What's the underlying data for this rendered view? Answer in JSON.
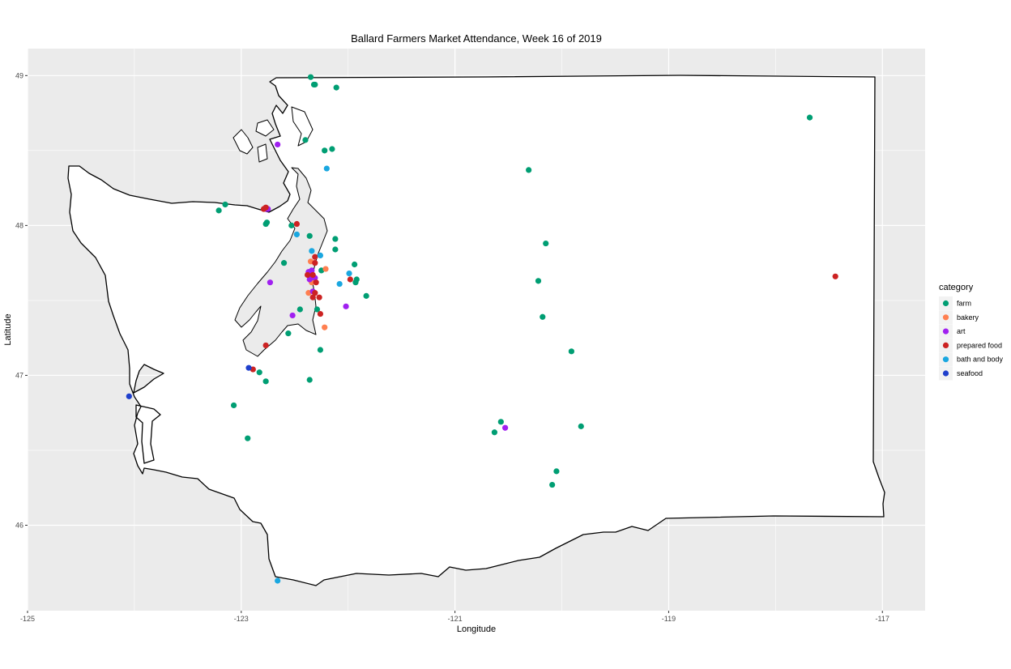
{
  "chart_data": {
    "type": "scatter",
    "title": "Ballard Farmers Market Attendance, Week 16 of 2019",
    "xlabel": "Longitude",
    "ylabel": "Latitude",
    "xlim": [
      -125.0,
      -116.6
    ],
    "ylim": [
      45.43,
      49.18
    ],
    "x_ticks": [
      -125,
      -123,
      -121,
      -119,
      -117
    ],
    "y_ticks": [
      46,
      47,
      48,
      49
    ],
    "grid": true,
    "legend": {
      "title": "category",
      "position": "right",
      "entries": [
        {
          "name": "farm",
          "color": "#009E73"
        },
        {
          "name": "bakery",
          "color": "#FF7F50"
        },
        {
          "name": "art",
          "color": "#A020F0"
        },
        {
          "name": "prepared food",
          "color": "#CC2222"
        },
        {
          "name": "bath and body",
          "color": "#1AA7E0"
        },
        {
          "name": "seafood",
          "color": "#1F3FCC"
        }
      ]
    },
    "series": [
      {
        "name": "farm",
        "points": [
          [
            -122.35,
            48.99
          ],
          [
            -122.31,
            48.94
          ],
          [
            -122.32,
            48.94
          ],
          [
            -122.11,
            48.92
          ],
          [
            -122.4,
            48.57
          ],
          [
            -122.22,
            48.5
          ],
          [
            -122.15,
            48.51
          ],
          [
            -123.15,
            48.14
          ],
          [
            -123.21,
            48.1
          ],
          [
            -122.77,
            48.01
          ],
          [
            -122.76,
            48.02
          ],
          [
            -122.53,
            48.0
          ],
          [
            -122.36,
            47.93
          ],
          [
            -122.12,
            47.91
          ],
          [
            -122.12,
            47.84
          ],
          [
            -122.6,
            47.75
          ],
          [
            -121.94,
            47.74
          ],
          [
            -122.25,
            47.7
          ],
          [
            -121.92,
            47.64
          ],
          [
            -121.93,
            47.62
          ],
          [
            -121.83,
            47.53
          ],
          [
            -122.29,
            47.44
          ],
          [
            -122.45,
            47.44
          ],
          [
            -122.56,
            47.28
          ],
          [
            -122.26,
            47.17
          ],
          [
            -122.83,
            47.02
          ],
          [
            -122.77,
            46.96
          ],
          [
            -122.36,
            46.97
          ],
          [
            -123.07,
            46.8
          ],
          [
            -122.94,
            46.58
          ],
          [
            -120.31,
            48.37
          ],
          [
            -120.15,
            47.88
          ],
          [
            -120.22,
            47.63
          ],
          [
            -120.18,
            47.39
          ],
          [
            -119.91,
            47.16
          ],
          [
            -120.57,
            46.69
          ],
          [
            -120.63,
            46.62
          ],
          [
            -119.82,
            46.66
          ],
          [
            -120.05,
            46.36
          ],
          [
            -120.09,
            46.27
          ],
          [
            -117.68,
            48.72
          ]
        ]
      },
      {
        "name": "bakery",
        "points": [
          [
            -122.35,
            47.76
          ],
          [
            -122.36,
            47.66
          ],
          [
            -122.34,
            47.62
          ],
          [
            -122.21,
            47.71
          ],
          [
            -122.37,
            47.55
          ],
          [
            -122.22,
            47.32
          ]
        ]
      },
      {
        "name": "art",
        "points": [
          [
            -122.66,
            48.54
          ],
          [
            -122.75,
            48.11
          ],
          [
            -122.77,
            48.11
          ],
          [
            -122.37,
            47.69
          ],
          [
            -122.34,
            47.7
          ],
          [
            -122.35,
            47.65
          ],
          [
            -122.36,
            47.64
          ],
          [
            -122.31,
            47.65
          ],
          [
            -122.73,
            47.62
          ],
          [
            -122.33,
            47.56
          ],
          [
            -122.52,
            47.4
          ],
          [
            -122.02,
            47.46
          ],
          [
            -120.53,
            46.65
          ]
        ]
      },
      {
        "name": "prepared food",
        "points": [
          [
            -122.48,
            48.01
          ],
          [
            -122.77,
            48.12
          ],
          [
            -122.79,
            48.11
          ],
          [
            -122.31,
            47.79
          ],
          [
            -122.31,
            47.75
          ],
          [
            -122.38,
            47.67
          ],
          [
            -122.33,
            47.67
          ],
          [
            -122.3,
            47.62
          ],
          [
            -121.98,
            47.64
          ],
          [
            -122.31,
            47.55
          ],
          [
            -122.33,
            47.52
          ],
          [
            -122.27,
            47.52
          ],
          [
            -122.26,
            47.41
          ],
          [
            -122.77,
            47.2
          ],
          [
            -122.89,
            47.04
          ],
          [
            -117.44,
            47.66
          ]
        ]
      },
      {
        "name": "bath and body",
        "points": [
          [
            -122.2,
            48.38
          ],
          [
            -122.48,
            47.94
          ],
          [
            -122.34,
            47.83
          ],
          [
            -122.26,
            47.8
          ],
          [
            -121.99,
            47.68
          ],
          [
            -122.08,
            47.61
          ],
          [
            -122.66,
            45.63
          ]
        ]
      },
      {
        "name": "seafood",
        "points": [
          [
            -124.05,
            46.86
          ],
          [
            -122.93,
            47.05
          ]
        ]
      }
    ]
  }
}
